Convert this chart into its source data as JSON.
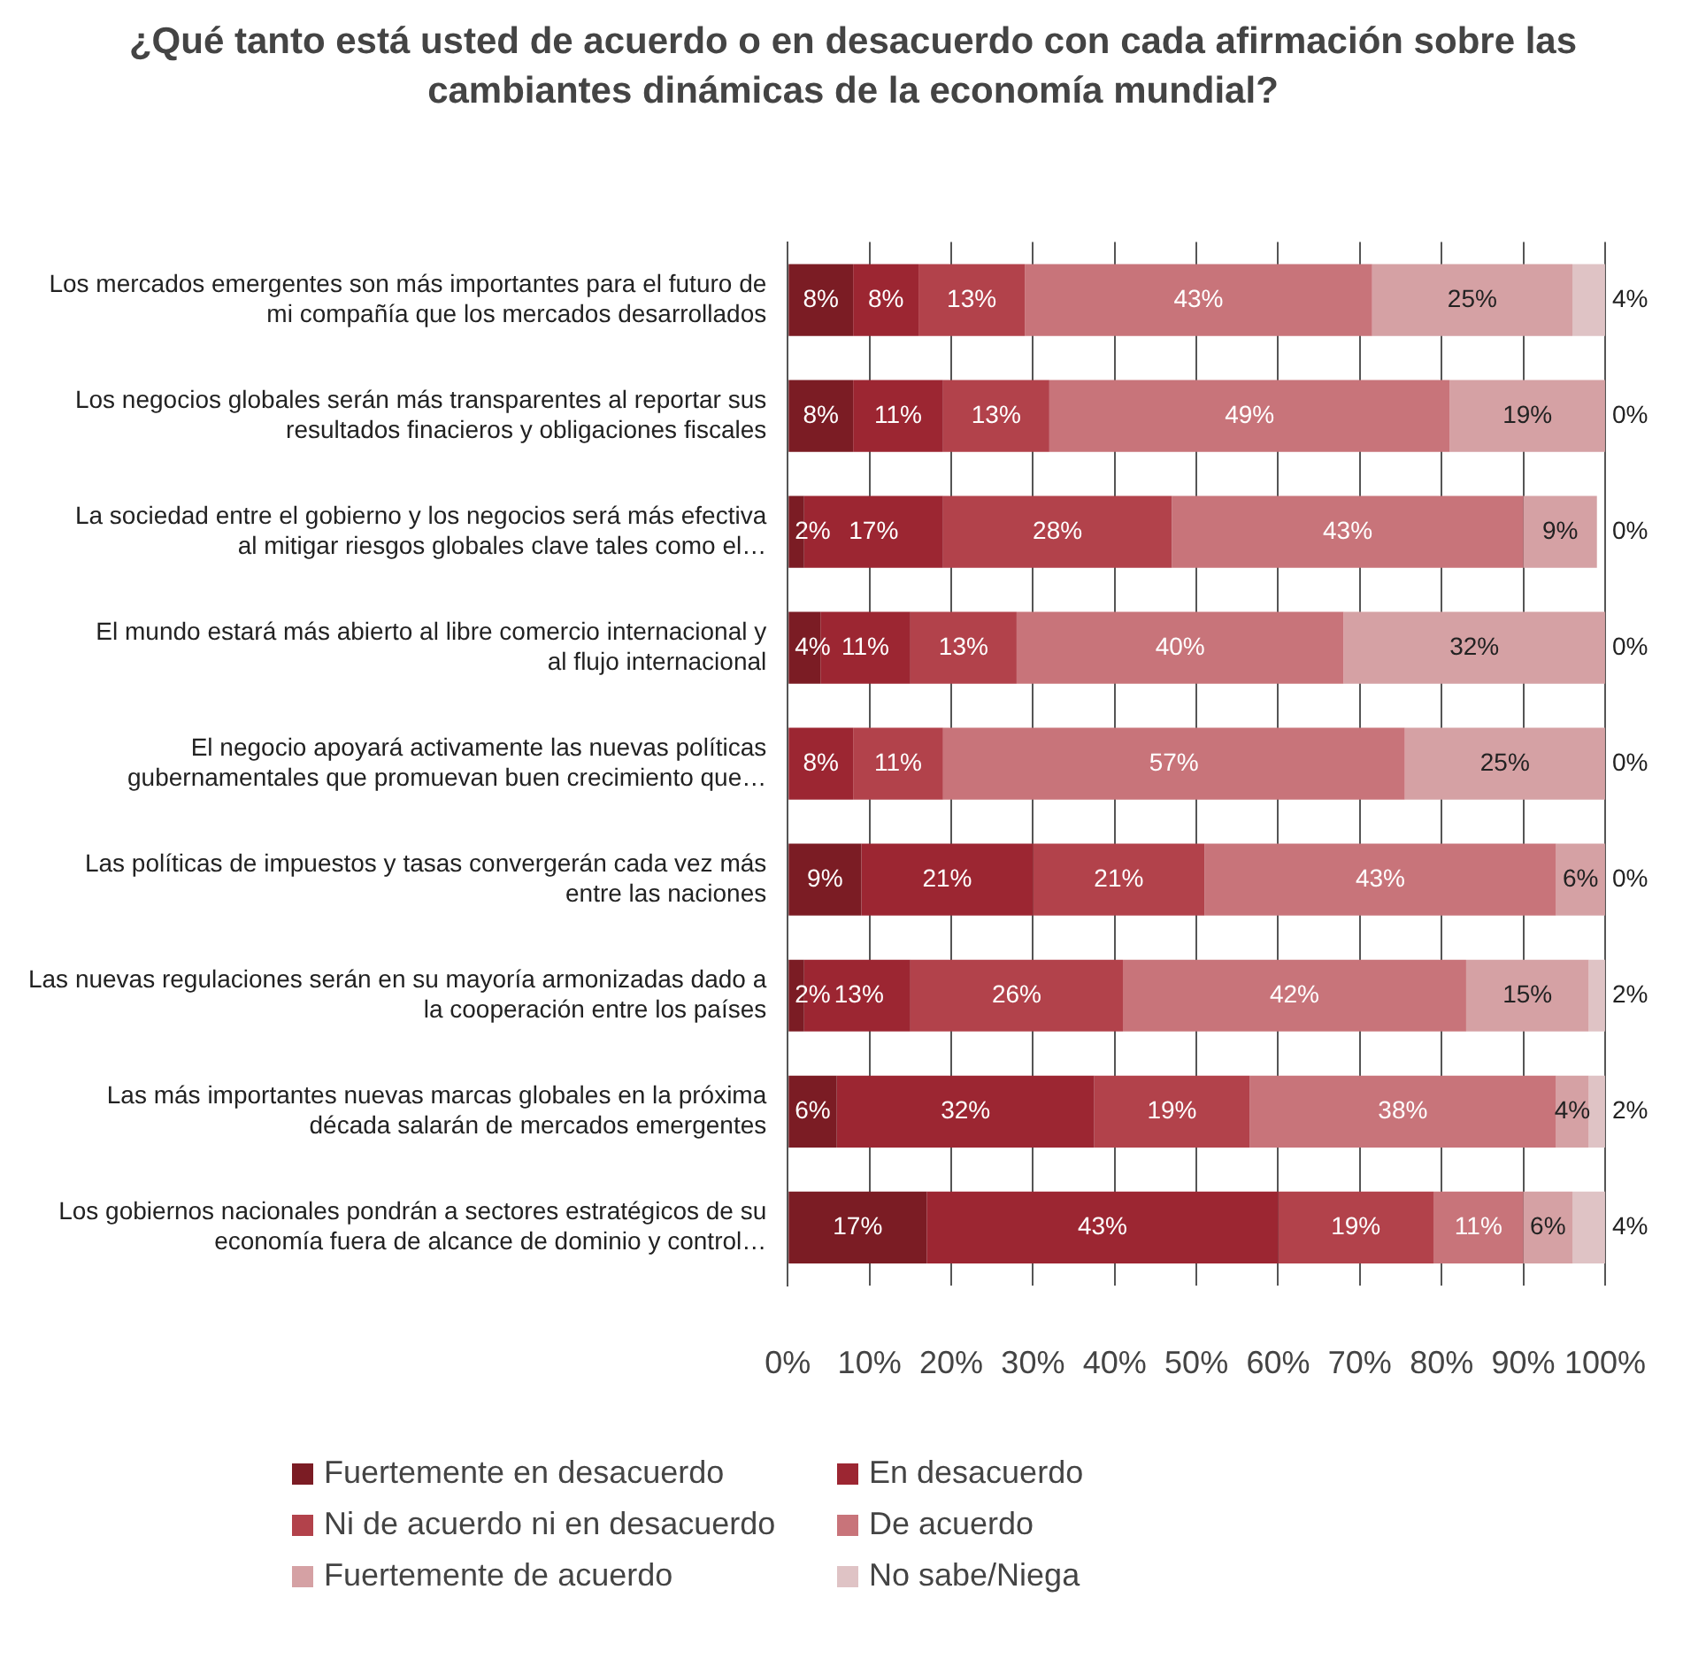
{
  "chart_data": {
    "type": "bar",
    "orientation": "horizontal",
    "stacked": true,
    "title": "¿Qué tanto está usted de acuerdo o en desacuerdo con cada afirmación sobre las cambiantes dinámicas de la economía mundial?",
    "categories": [
      "Los mercados emergentes son más importantes para el futuro de mi compañía que los mercados desarrollados",
      "Los negocios globales serán más transparentes al reportar sus resultados finacieros y obligaciones fiscales",
      "La sociedad entre el gobierno y los negocios será más efectiva al mitigar riesgos globales clave tales como el…",
      "El mundo estará más abierto al libre comercio internacional y al flujo internacional",
      "El negocio apoyará activamente las nuevas políticas gubernamentales que promuevan buen crecimiento que…",
      "Las políticas de impuestos y tasas convergerán cada vez más entre las naciones",
      "Las nuevas regulaciones serán en su mayoría armonizadas dado a la cooperación entre los países",
      "Las más importantes nuevas marcas globales en la próxima década salarán de mercados emergentes",
      "Los gobiernos nacionales pondrán a sectores estratégicos de su economía fuera de alcance de dominio y control…"
    ],
    "series": [
      {
        "name": "Fuertemente en desacuerdo",
        "color": "#7b1c24",
        "values": [
          8,
          8,
          2,
          4,
          0,
          9,
          2,
          6,
          17
        ],
        "value_labels": [
          "8%",
          "8%",
          "2%",
          "4%",
          null,
          "9%",
          "2%",
          "6%",
          "17%"
        ]
      },
      {
        "name": "En desacuerdo",
        "color": "#9c2632",
        "values": [
          8,
          11,
          17,
          11,
          8,
          21,
          13,
          31.5,
          43
        ],
        "value_labels": [
          "8%",
          "11%",
          "17%",
          "11%",
          "8%",
          "21%",
          "13%",
          "32%",
          "43%"
        ]
      },
      {
        "name": "Ni de acuerdo ni en desacuerdo",
        "color": "#b2424b",
        "values": [
          13,
          13,
          28,
          13,
          11,
          21,
          26,
          19,
          19
        ],
        "value_labels": [
          "13%",
          "13%",
          "28%",
          "13%",
          "11%",
          "21%",
          "26%",
          "19%",
          "19%"
        ]
      },
      {
        "name": "De acuerdo",
        "color": "#c8747a",
        "values": [
          42.5,
          49,
          43,
          40,
          56.5,
          43,
          42,
          37.5,
          11
        ],
        "value_labels": [
          "43%",
          "49%",
          "43%",
          "40%",
          "57%",
          "43%",
          "42%",
          "38%",
          "11%"
        ]
      },
      {
        "name": "Fuertemente de acuerdo",
        "color": "#d5a1a4",
        "values": [
          24.5,
          19,
          9,
          32,
          24.5,
          6,
          15,
          4,
          6
        ],
        "value_labels": [
          "25%",
          "19%",
          "9%",
          "32%",
          "25%",
          "6%",
          "15%",
          "4%",
          "6%"
        ]
      },
      {
        "name": "No sabe/Niega",
        "color": "#dfc3c5",
        "values": [
          4,
          0,
          0,
          0,
          0,
          0,
          2,
          2,
          4
        ],
        "value_labels": [
          "4%",
          "0%",
          "0%",
          "0%",
          "0%",
          "0%",
          "2%",
          "2%",
          "4%"
        ]
      }
    ],
    "xlim": [
      0,
      100
    ],
    "xticks": [
      {
        "value": 0,
        "label": "0%"
      },
      {
        "value": 10,
        "label": "10%"
      },
      {
        "value": 20,
        "label": "20%"
      },
      {
        "value": 30,
        "label": "30%"
      },
      {
        "value": 40,
        "label": "40%"
      },
      {
        "value": 50,
        "label": "50%"
      },
      {
        "value": 60,
        "label": "60%"
      },
      {
        "value": 70,
        "label": "70%"
      },
      {
        "value": 80,
        "label": "80%"
      },
      {
        "value": 90,
        "label": "90%"
      },
      {
        "value": 100,
        "label": "100%"
      }
    ],
    "grid": "x",
    "legend": "bottom"
  }
}
